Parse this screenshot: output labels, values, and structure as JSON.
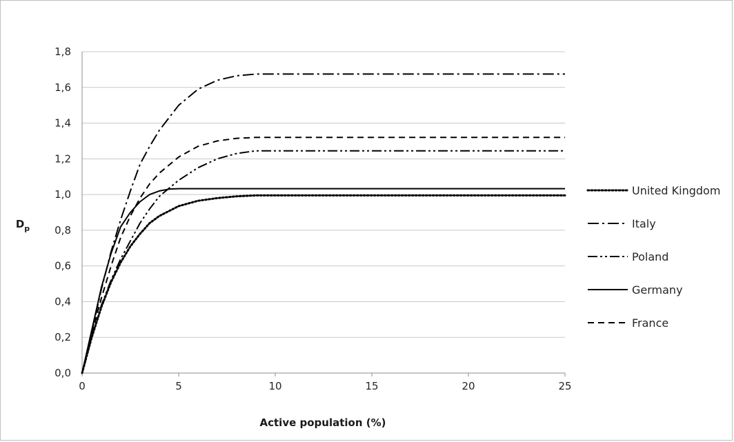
{
  "chart_data": {
    "type": "line",
    "xlabel": "Active population (%)",
    "ylabel": "D",
    "ylabel_sub": "p",
    "xlim": [
      0,
      25
    ],
    "ylim": [
      0,
      1.8
    ],
    "xticks": [
      "0",
      "5",
      "10",
      "15",
      "20",
      "25"
    ],
    "yticks": [
      "0,0",
      "0,2",
      "0,4",
      "0,6",
      "0,8",
      "1,0",
      "1,2",
      "1,4",
      "1,6",
      "1,8"
    ],
    "grid": "horizontal",
    "legend_position": "right",
    "series": [
      {
        "name": "United Kingdom",
        "dash": "dotted",
        "x": [
          0,
          0.5,
          1,
          1.5,
          2,
          2.5,
          3,
          3.5,
          4,
          5,
          6,
          7,
          8,
          9,
          10,
          12,
          15,
          20,
          25
        ],
        "y": [
          0,
          0.2,
          0.37,
          0.51,
          0.62,
          0.71,
          0.78,
          0.84,
          0.88,
          0.935,
          0.965,
          0.98,
          0.99,
          0.995,
          0.995,
          0.995,
          0.995,
          0.995,
          0.995
        ]
      },
      {
        "name": "Italy",
        "dash": "dashdot",
        "x": [
          0,
          0.5,
          1,
          1.5,
          2,
          2.5,
          3,
          3.5,
          4,
          5,
          6,
          7,
          8,
          9,
          10,
          12,
          15,
          20,
          25
        ],
        "y": [
          0,
          0.23,
          0.47,
          0.68,
          0.86,
          1.02,
          1.17,
          1.27,
          1.36,
          1.5,
          1.59,
          1.64,
          1.665,
          1.675,
          1.675,
          1.675,
          1.675,
          1.675,
          1.675
        ]
      },
      {
        "name": "Poland",
        "dash": "dashdotdot",
        "x": [
          0,
          0.5,
          1,
          1.5,
          2,
          2.5,
          3,
          3.5,
          4,
          5,
          6,
          7,
          8,
          9,
          10,
          12,
          15,
          20,
          25
        ],
        "y": [
          0,
          0.2,
          0.38,
          0.52,
          0.64,
          0.74,
          0.84,
          0.92,
          0.99,
          1.08,
          1.15,
          1.2,
          1.23,
          1.245,
          1.245,
          1.245,
          1.245,
          1.245,
          1.245
        ]
      },
      {
        "name": "Germany",
        "dash": "solid",
        "x": [
          0,
          0.5,
          1,
          1.5,
          2,
          2.5,
          3,
          3.5,
          4,
          4.5,
          5,
          6,
          8,
          10,
          15,
          20,
          25
        ],
        "y": [
          0,
          0.24,
          0.48,
          0.67,
          0.82,
          0.9,
          0.96,
          1.0,
          1.02,
          1.03,
          1.033,
          1.033,
          1.033,
          1.033,
          1.033,
          1.033,
          1.033
        ]
      },
      {
        "name": "France",
        "dash": "dashed",
        "x": [
          0,
          0.5,
          1,
          1.5,
          2,
          2.5,
          3,
          3.5,
          4,
          5,
          6,
          7,
          8,
          9,
          10,
          12,
          15,
          20,
          25
        ],
        "y": [
          0,
          0.22,
          0.42,
          0.6,
          0.76,
          0.88,
          0.98,
          1.06,
          1.12,
          1.21,
          1.27,
          1.3,
          1.315,
          1.32,
          1.32,
          1.32,
          1.32,
          1.32,
          1.32
        ]
      }
    ]
  }
}
